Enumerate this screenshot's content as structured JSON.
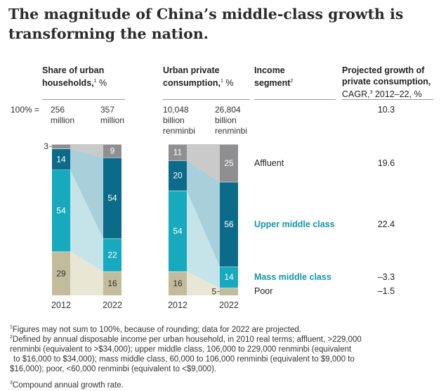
{
  "title": "The magnitude of China’s middle-class growth is transforming the nation.",
  "headers": {
    "share_title": "Share of urban households,",
    "share_sup": "1",
    "share_unit": " %",
    "cons_title": "Urban private consumption,",
    "cons_sup": "1",
    "cons_unit": " %",
    "segment_title": "Income segment",
    "segment_sup": "2",
    "growth_title": "Projected growth of private consumption,",
    "growth_sub": "CAGR,",
    "growth_sup": "3",
    "growth_unit": " 2012–22, %"
  },
  "totals": {
    "label": "100% =",
    "households_2012_value": "256",
    "households_2012_unit": "million",
    "households_2022_value": "357",
    "households_2022_unit": "million",
    "consumption_2012_value": "10,048",
    "consumption_2012_unit1": "billion",
    "consumption_2012_unit2": "renminbi",
    "consumption_2022_value": "26,804",
    "consumption_2022_unit1": "billion",
    "consumption_2022_unit2": "renminbi"
  },
  "segments": [
    {
      "name": "Affluent",
      "cagr": "19.6",
      "highlight": false
    },
    {
      "name": "Upper middle class",
      "cagr": "22.4",
      "highlight": true
    },
    {
      "name": "Mass middle class",
      "cagr": "–3.3",
      "highlight": true
    },
    {
      "name": "Poor",
      "cagr": "–1.5",
      "highlight": false
    }
  ],
  "total_cagr": "10.3",
  "chart_data": [
    {
      "type": "bar",
      "subtype": "stacked-100",
      "title": "Share of urban households, %",
      "categories": [
        "2012",
        "2022"
      ],
      "series": [
        {
          "name": "Poor",
          "values": [
            29,
            16
          ],
          "labels": [
            "29",
            "16"
          ]
        },
        {
          "name": "Mass middle class",
          "values": [
            54,
            22
          ],
          "labels": [
            "54",
            "22"
          ]
        },
        {
          "name": "Upper middle class",
          "values": [
            14,
            54
          ],
          "labels": [
            "14",
            "54"
          ]
        },
        {
          "name": "Affluent",
          "values": [
            3,
            9
          ],
          "labels": [
            "3",
            "9"
          ]
        }
      ],
      "ylim": [
        0,
        100
      ]
    },
    {
      "type": "bar",
      "subtype": "stacked-100",
      "title": "Urban private consumption, %",
      "categories": [
        "2012",
        "2022"
      ],
      "series": [
        {
          "name": "Poor",
          "values": [
            16,
            5
          ],
          "labels": [
            "16",
            "5"
          ]
        },
        {
          "name": "Mass middle class",
          "values": [
            54,
            14
          ],
          "labels": [
            "54",
            "14"
          ]
        },
        {
          "name": "Upper middle class",
          "values": [
            20,
            56
          ],
          "labels": [
            "20",
            "56"
          ]
        },
        {
          "name": "Affluent",
          "values": [
            11,
            25
          ],
          "labels": [
            "11",
            "25"
          ]
        }
      ],
      "ylim": [
        0,
        100
      ]
    }
  ],
  "colors": {
    "poor": "#c2bc9d",
    "mass": "#17a9bd",
    "upper": "#0d6b8a",
    "affluent": "#8f8f92",
    "poor_band": "#e9e6d4",
    "mass_band": "#c4e4ea",
    "upper_band": "#a9cfdb",
    "affluent_band": "#cacaca"
  },
  "footnotes": {
    "f1_sup": "1",
    "f1": "Figures may not sum to 100%, because of rounding; data for 2022 are projected.",
    "f2_sup": "2",
    "f2_l1": "Defined by annual disposable income per urban household, in 2010 real terms; affluent, >229,000",
    "f2_l2": "renminbi (equivalent to >$34,000); upper middle class, 106,000 to 229,000 renminbi (equivalent",
    "f2_l3": "to $16,000 to $34,000); mass middle class, 60,000 to 106,000 renminbi (equivalent to $9,000 to",
    "f2_l4": "$16,000); poor, <60,000 renminbi (equivalent to <$9,000).",
    "f3_sup": "3",
    "f3": "Compound annual growth rate."
  }
}
